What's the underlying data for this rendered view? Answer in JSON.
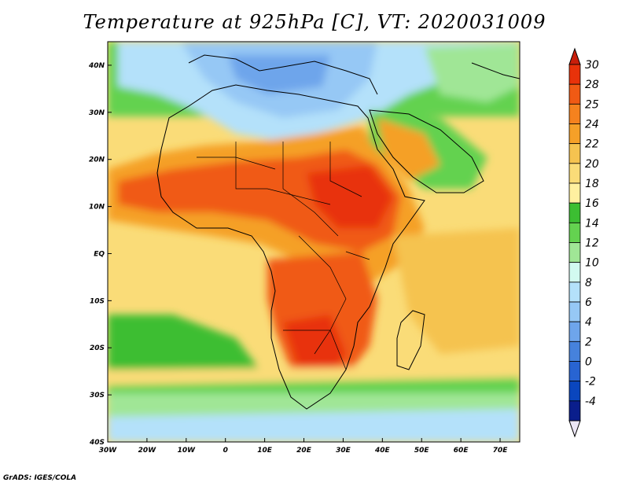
{
  "title": "Temperature at 925hPa [C], VT: 2020031009",
  "credit": "GrADS: IGES/COLA",
  "map": {
    "lon_range": [
      -30,
      75
    ],
    "lat_range": [
      -40,
      45
    ],
    "x_ticks": [
      "30W",
      "20W",
      "10W",
      "0",
      "10E",
      "20E",
      "30E",
      "40E",
      "50E",
      "60E",
      "70E"
    ],
    "y_ticks": [
      "40N",
      "30N",
      "20N",
      "10N",
      "EQ",
      "10S",
      "20S",
      "30S",
      "40S"
    ],
    "y_tick_values": [
      40,
      30,
      20,
      10,
      0,
      -10,
      -20,
      -30,
      -40
    ],
    "x_tick_values": [
      -30,
      -20,
      -10,
      0,
      10,
      20,
      30,
      40,
      50,
      60,
      70
    ]
  },
  "colorbar": {
    "labels": [
      "30",
      "28",
      "25",
      "24",
      "22",
      "20",
      "18",
      "16",
      "14",
      "12",
      "10",
      "8",
      "6",
      "4",
      "2",
      "0",
      "-2",
      "-4"
    ],
    "colors": [
      "#e8320a",
      "#f05a14",
      "#f5821e",
      "#f5a028",
      "#f5c350",
      "#fadc78",
      "#fff0a0",
      "#3cbe32",
      "#64d250",
      "#a0e696",
      "#d2faf0",
      "#b4e1fa",
      "#96c8f5",
      "#6ea5eb",
      "#4682dc",
      "#2864d2",
      "#0a46be",
      "#0a1e8c"
    ],
    "top_color": "#c81e0a",
    "bottom_color": "#ebe6f5"
  }
}
